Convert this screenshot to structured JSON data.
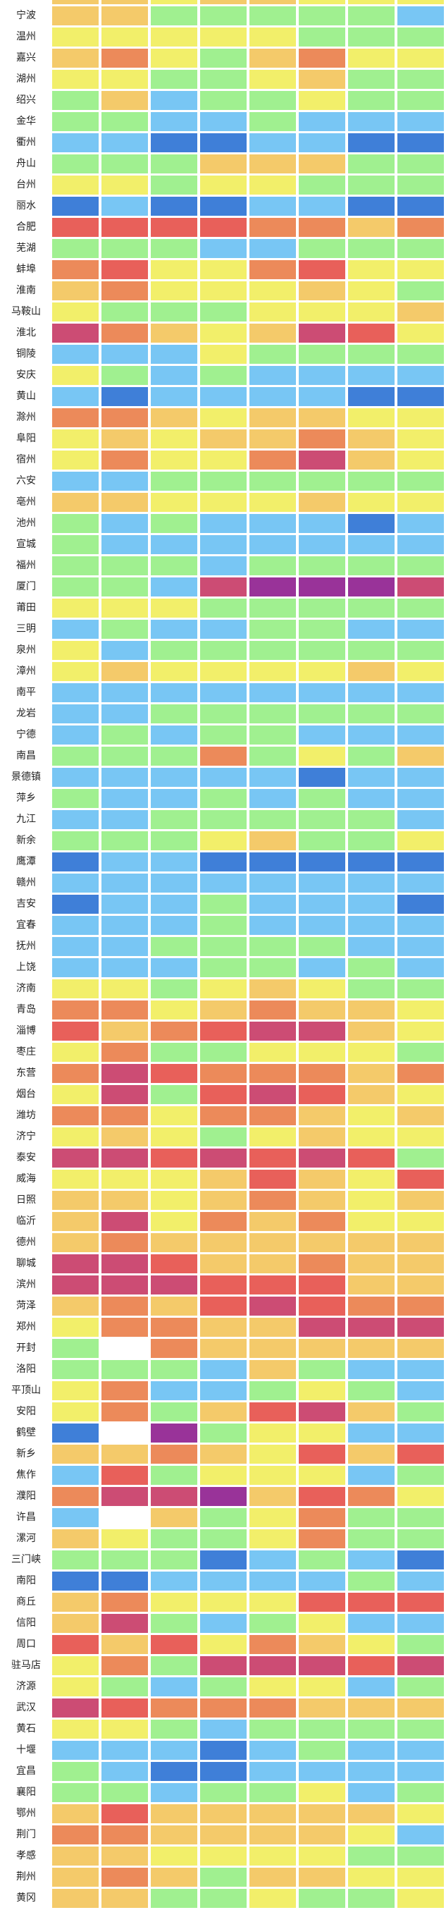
{
  "chart_data": {
    "type": "heatmap",
    "title": "",
    "xlabel": "",
    "ylabel": "",
    "column_count": 8,
    "level_colors": {
      "B": "#3f7fd8",
      "L": "#78c6f4",
      "G": "#a0f090",
      "Y": "#f2ef6a",
      "O": "#f4ca6a",
      "R": "#ec8a5a",
      "E": "#e8605a",
      "C": "#cc4c74",
      "P": "#993399",
      "W": "#ffffff"
    },
    "rows": [
      {
        "city": "",
        "levels": "OOYOOYYY"
      },
      {
        "city": "宁波",
        "levels": "OOGGGGGL"
      },
      {
        "city": "温州",
        "levels": "YYYYYGGG"
      },
      {
        "city": "嘉兴",
        "levels": "ORYGORYY"
      },
      {
        "city": "湖州",
        "levels": "YYGGYOGG"
      },
      {
        "city": "绍兴",
        "levels": "GOLGGYGG"
      },
      {
        "city": "金华",
        "levels": "GGLLGLLL"
      },
      {
        "city": "衢州",
        "levels": "LLBBLLBB"
      },
      {
        "city": "舟山",
        "levels": "GGGOOOGG"
      },
      {
        "city": "台州",
        "levels": "YYGYYGGG"
      },
      {
        "city": "丽水",
        "levels": "BLBBLLBB"
      },
      {
        "city": "合肥",
        "levels": "EEEERROR"
      },
      {
        "city": "芜湖",
        "levels": "GGGLLGGG"
      },
      {
        "city": "蚌埠",
        "levels": "REYYREYY"
      },
      {
        "city": "淮南",
        "levels": "ORYYYOYG"
      },
      {
        "city": "马鞍山",
        "levels": "YGGGYYYO"
      },
      {
        "city": "淮北",
        "levels": "CROYOCEY"
      },
      {
        "city": "铜陵",
        "levels": "LLLYGGGG"
      },
      {
        "city": "安庆",
        "levels": "YGLGLLLL"
      },
      {
        "city": "黄山",
        "levels": "LBLLLLBB"
      },
      {
        "city": "滁州",
        "levels": "RROYOOYY"
      },
      {
        "city": "阜阳",
        "levels": "YOYOOROY"
      },
      {
        "city": "宿州",
        "levels": "YRYYRCOY"
      },
      {
        "city": "六安",
        "levels": "LLGGGGGG"
      },
      {
        "city": "亳州",
        "levels": "OOYYYOYY"
      },
      {
        "city": "池州",
        "levels": "GLGLLLBL"
      },
      {
        "city": "宣城",
        "levels": "GLLLLLLL"
      },
      {
        "city": "福州",
        "levels": "GGGLGGGG"
      },
      {
        "city": "厦门",
        "levels": "GGLCPPPC"
      },
      {
        "city": "莆田",
        "levels": "YYYGGGGG"
      },
      {
        "city": "三明",
        "levels": "LGLLGGLL"
      },
      {
        "city": "泉州",
        "levels": "YLGGGGGG"
      },
      {
        "city": "漳州",
        "levels": "YOYYYYOY"
      },
      {
        "city": "南平",
        "levels": "LLLLLLLL"
      },
      {
        "city": "龙岩",
        "levels": "LLGGGGGG"
      },
      {
        "city": "宁德",
        "levels": "LGLGGLLL"
      },
      {
        "city": "南昌",
        "levels": "GGGRGYGO"
      },
      {
        "city": "景德镇",
        "levels": "LLLLLBLL"
      },
      {
        "city": "萍乡",
        "levels": "GLLGLGLL"
      },
      {
        "city": "九江",
        "levels": "LLGGGGGL"
      },
      {
        "city": "新余",
        "levels": "GGGYOGGY"
      },
      {
        "city": "鹰潭",
        "levels": "BLLBBBBB"
      },
      {
        "city": "赣州",
        "levels": "LLLLLLLL"
      },
      {
        "city": "吉安",
        "levels": "BLLGLLLB"
      },
      {
        "city": "宜春",
        "levels": "LLLGLLLL"
      },
      {
        "city": "抚州",
        "levels": "LLGGGGLL"
      },
      {
        "city": "上饶",
        "levels": "LLLGGLGL"
      },
      {
        "city": "济南",
        "levels": "YYGYOYGG"
      },
      {
        "city": "青岛",
        "levels": "RRYOROOY"
      },
      {
        "city": "淄博",
        "levels": "EORECCOY"
      },
      {
        "city": "枣庄",
        "levels": "YRGGYYYG"
      },
      {
        "city": "东营",
        "levels": "RCERRROR"
      },
      {
        "city": "烟台",
        "levels": "YCGECEOY"
      },
      {
        "city": "潍坊",
        "levels": "RRYRROYO"
      },
      {
        "city": "济宁",
        "levels": "YOYGYOYY"
      },
      {
        "city": "泰安",
        "levels": "CCECECEG"
      },
      {
        "city": "威海",
        "levels": "YYYOEOYE"
      },
      {
        "city": "日照",
        "levels": "OOYOROYO"
      },
      {
        "city": "临沂",
        "levels": "OCYRORYY"
      },
      {
        "city": "德州",
        "levels": "OROOOOOO"
      },
      {
        "city": "聊城",
        "levels": "CCEOOROO"
      },
      {
        "city": "滨州",
        "levels": "CCCEEEOO"
      },
      {
        "city": "菏泽",
        "levels": "OROECERR"
      },
      {
        "city": "郑州",
        "levels": "YRROOCCC"
      },
      {
        "city": "开封",
        "levels": "GWROOOOO"
      },
      {
        "city": "洛阳",
        "levels": "GGGLOGLL"
      },
      {
        "city": "平顶山",
        "levels": "YRLLGYGL"
      },
      {
        "city": "安阳",
        "levels": "YRGOECOG"
      },
      {
        "city": "鹤壁",
        "levels": "BWPGYYLL"
      },
      {
        "city": "新乡",
        "levels": "OOROYEOE"
      },
      {
        "city": "焦作",
        "levels": "LEGYYYLG"
      },
      {
        "city": "濮阳",
        "levels": "RCCPOERY"
      },
      {
        "city": "许昌",
        "levels": "LWOGYRGG"
      },
      {
        "city": "漯河",
        "levels": "OYGGYRGG"
      },
      {
        "city": "三门峡",
        "levels": "GGGBLGLB"
      },
      {
        "city": "南阳",
        "levels": "BBLLLLGL"
      },
      {
        "city": "商丘",
        "levels": "ORYYYEEE"
      },
      {
        "city": "信阳",
        "levels": "OCGLGYLL"
      },
      {
        "city": "周口",
        "levels": "EOEYROYG"
      },
      {
        "city": "驻马店",
        "levels": "YRGCCCEC"
      },
      {
        "city": "济源",
        "levels": "YGLGYYLG"
      },
      {
        "city": "武汉",
        "levels": "CERRROOO"
      },
      {
        "city": "黄石",
        "levels": "YYGLGGGG"
      },
      {
        "city": "十堰",
        "levels": "LLLBLGLL"
      },
      {
        "city": "宜昌",
        "levels": "GLBBLLLL"
      },
      {
        "city": "襄阳",
        "levels": "GGLGGYLG"
      },
      {
        "city": "鄂州",
        "levels": "OEOOOOOY"
      },
      {
        "city": "荆门",
        "levels": "RROOOOYL"
      },
      {
        "city": "孝感",
        "levels": "OOYYYYGG"
      },
      {
        "city": "荆州",
        "levels": "OROGOOYY"
      },
      {
        "city": "黄冈",
        "levels": "OOGGYGGY"
      }
    ]
  }
}
